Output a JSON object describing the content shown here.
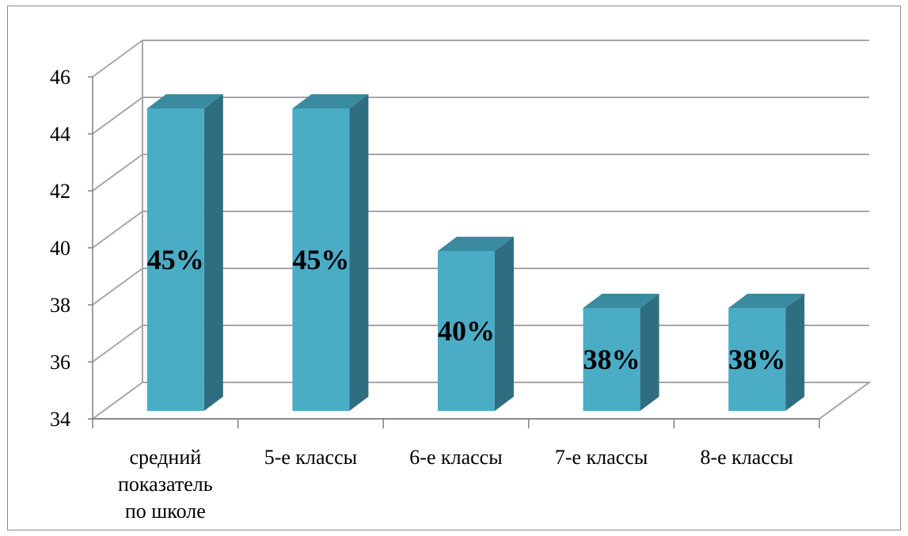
{
  "chart_data": {
    "type": "bar",
    "style": "3d-column",
    "categories": [
      [
        "средний",
        "показатель",
        "по школе"
      ],
      [
        "5-е классы"
      ],
      [
        "6-е классы"
      ],
      [
        "7-е классы"
      ],
      [
        "8-е классы"
      ]
    ],
    "values": [
      45,
      45,
      40,
      38,
      38
    ],
    "data_labels": [
      "45%",
      "45%",
      "40%",
      "38%",
      "38%"
    ],
    "y_ticks": [
      34,
      36,
      38,
      40,
      42,
      44,
      46
    ],
    "ylim": [
      34,
      46
    ],
    "grid": true,
    "legend": "none",
    "title": "",
    "xlabel": "",
    "ylabel": ""
  },
  "colors": {
    "bar_front": "#4BACC6",
    "bar_top": "#3A8BA0",
    "bar_side": "#2F6E80",
    "grid": "#A6A6A6",
    "axis": "#808080"
  }
}
